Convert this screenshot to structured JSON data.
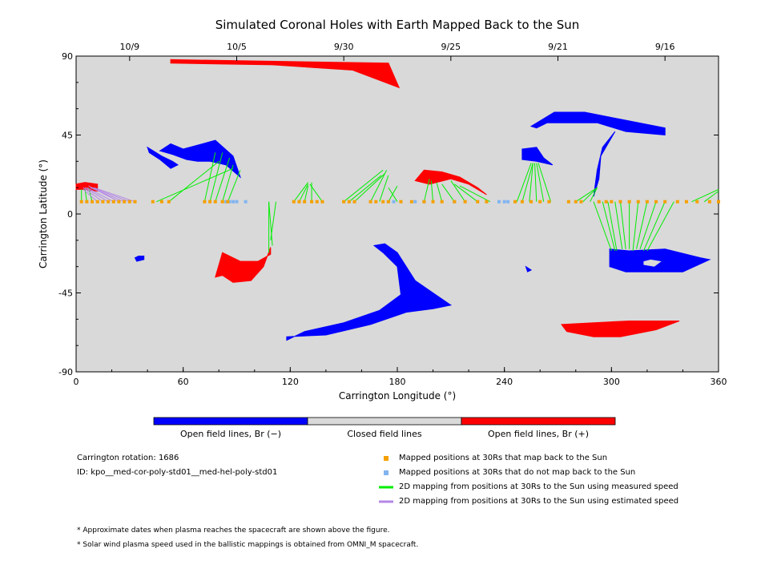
{
  "chart_data": {
    "type": "scatter",
    "title": "Simulated Coronal Holes with Earth Mapped Back to the Sun",
    "xlabel": "Carrington Longitude (°)",
    "ylabel": "Carrington Latitude (°)",
    "xlim": [
      0,
      360
    ],
    "ylim": [
      -90,
      90
    ],
    "x_ticks": [
      "0",
      "60",
      "120",
      "180",
      "240",
      "300",
      "360"
    ],
    "y_ticks": [
      "90",
      "45",
      "0",
      "-45",
      "-90"
    ],
    "top_axis_dates": [
      {
        "label": "10/9",
        "lon": 30
      },
      {
        "label": "10/5",
        "lon": 90
      },
      {
        "label": "9/30",
        "lon": 150
      },
      {
        "label": "9/25",
        "lon": 210
      },
      {
        "label": "9/21",
        "lon": 270
      },
      {
        "label": "9/16",
        "lon": 330
      }
    ],
    "grid": false,
    "colors": {
      "background": "#d9d9d9",
      "open_negative": "#0000ff",
      "open_positive": "#ff0000",
      "closed": "#d9d9d9",
      "mapped_point": "#f5a000",
      "unmapped_point": "#82b4f0",
      "measured_line": "#00ee00",
      "estimated_line": "#b487e6"
    },
    "colorbar": {
      "labels": [
        "Open field lines, Br (−)",
        "Closed field lines",
        "Open field lines, Br (+)"
      ]
    },
    "coronal_holes": [
      {
        "polarity": "positive",
        "points": [
          [
            53,
            88
          ],
          [
            175,
            86
          ],
          [
            181,
            72
          ],
          [
            155,
            82
          ],
          [
            110,
            85
          ],
          [
            53,
            86
          ]
        ]
      },
      {
        "polarity": "negative",
        "points": [
          [
            53,
            40
          ],
          [
            60,
            37
          ],
          [
            78,
            42
          ],
          [
            88,
            33
          ],
          [
            92,
            21
          ],
          [
            84,
            28
          ],
          [
            75,
            30
          ],
          [
            68,
            30
          ],
          [
            62,
            31
          ],
          [
            54,
            34
          ],
          [
            47,
            36
          ]
        ]
      },
      {
        "polarity": "negative",
        "points": [
          [
            40,
            38
          ],
          [
            48,
            33
          ],
          [
            54,
            30
          ],
          [
            57,
            28
          ],
          [
            53,
            26
          ],
          [
            47,
            31
          ],
          [
            41,
            35
          ]
        ]
      },
      {
        "polarity": "positive",
        "points": [
          [
            0,
            17
          ],
          [
            5,
            18
          ],
          [
            12,
            17
          ],
          [
            12,
            13
          ],
          [
            5,
            14
          ],
          [
            0,
            14
          ]
        ]
      },
      {
        "polarity": "positive",
        "points": [
          [
            195,
            25
          ],
          [
            205,
            24
          ],
          [
            215,
            21
          ],
          [
            225,
            15
          ],
          [
            230,
            11
          ],
          [
            220,
            17
          ],
          [
            210,
            20
          ],
          [
            198,
            17
          ],
          [
            190,
            19
          ]
        ]
      },
      {
        "polarity": "negative",
        "points": [
          [
            250,
            37
          ],
          [
            258,
            38
          ],
          [
            262,
            32
          ],
          [
            267,
            28
          ],
          [
            258,
            30
          ],
          [
            250,
            31
          ]
        ]
      },
      {
        "polarity": "negative",
        "points": [
          [
            255,
            50
          ],
          [
            268,
            58
          ],
          [
            285,
            58
          ],
          [
            305,
            54
          ],
          [
            330,
            49
          ],
          [
            330,
            45
          ],
          [
            308,
            47
          ],
          [
            292,
            52
          ],
          [
            275,
            52
          ],
          [
            264,
            52
          ],
          [
            258,
            49
          ]
        ]
      },
      {
        "polarity": "negative",
        "points": [
          [
            302,
            47
          ],
          [
            294,
            33
          ],
          [
            293,
            20
          ],
          [
            290,
            10
          ],
          [
            292,
            25
          ],
          [
            295,
            38
          ]
        ]
      },
      {
        "polarity": "negative",
        "points": [
          [
            299,
            -20
          ],
          [
            310,
            -21
          ],
          [
            330,
            -20
          ],
          [
            350,
            -25
          ],
          [
            355,
            -26
          ],
          [
            340,
            -33
          ],
          [
            322,
            -33
          ],
          [
            308,
            -33
          ],
          [
            299,
            -30
          ]
        ]
      },
      {
        "polarity": "positive",
        "points": [
          [
            82,
            -22
          ],
          [
            92,
            -27
          ],
          [
            102,
            -27
          ],
          [
            109,
            -23
          ],
          [
            109,
            -19
          ],
          [
            105,
            -30
          ],
          [
            98,
            -38
          ],
          [
            88,
            -39
          ],
          [
            82,
            -35
          ],
          [
            78,
            -36
          ]
        ]
      },
      {
        "polarity": "negative",
        "points": [
          [
            118,
            -70
          ],
          [
            140,
            -69
          ],
          [
            165,
            -63
          ],
          [
            185,
            -56
          ],
          [
            200,
            -54
          ],
          [
            210,
            -52
          ],
          [
            200,
            -45
          ],
          [
            190,
            -38
          ],
          [
            180,
            -22
          ],
          [
            173,
            -17
          ],
          [
            167,
            -18
          ],
          [
            172,
            -22
          ],
          [
            180,
            -30
          ],
          [
            182,
            -46
          ],
          [
            170,
            -55
          ],
          [
            150,
            -62
          ],
          [
            128,
            -67
          ],
          [
            118,
            -72
          ]
        ]
      },
      {
        "polarity": "positive",
        "points": [
          [
            272,
            -63
          ],
          [
            290,
            -62
          ],
          [
            310,
            -61
          ],
          [
            338,
            -61
          ],
          [
            325,
            -66
          ],
          [
            305,
            -70
          ],
          [
            290,
            -70
          ],
          [
            275,
            -67
          ]
        ]
      },
      {
        "polarity": "negative",
        "points": [
          [
            33,
            -25
          ],
          [
            35,
            -24
          ],
          [
            38,
            -24
          ],
          [
            38,
            -26
          ],
          [
            34,
            -27
          ]
        ]
      },
      {
        "polarity": "negative",
        "points": [
          [
            252,
            -30
          ],
          [
            255,
            -32
          ],
          [
            253,
            -33
          ]
        ]
      }
    ],
    "closed_island": {
      "polarity": "closed",
      "points": [
        [
          318,
          -27
        ],
        [
          322,
          -26
        ],
        [
          328,
          -27
        ],
        [
          324,
          -30
        ],
        [
          318,
          -29
        ]
      ]
    },
    "mapped_points": [
      3,
      6,
      9,
      12,
      15,
      18,
      21,
      24,
      27,
      30,
      33,
      43,
      48,
      52,
      72,
      75,
      78,
      82,
      85,
      122,
      125,
      128,
      132,
      135,
      138,
      150,
      153,
      156,
      165,
      168,
      172,
      175,
      182,
      188,
      195,
      200,
      205,
      212,
      218,
      225,
      230,
      246,
      250,
      255,
      260,
      265,
      276,
      280,
      283,
      293,
      297,
      300,
      305,
      310,
      315,
      320,
      325,
      330,
      337,
      342,
      348,
      355,
      360
    ],
    "unmapped_points": [
      84,
      86,
      88,
      90,
      95,
      175,
      178,
      190,
      195,
      212,
      237,
      240,
      242
    ],
    "mapped_latitude": 7,
    "measured_mappings": [
      [
        [
          72,
          7
        ],
        [
          78,
          35
        ]
      ],
      [
        [
          75,
          7
        ],
        [
          82,
          35
        ]
      ],
      [
        [
          78,
          7
        ],
        [
          86,
          32
        ]
      ],
      [
        [
          82,
          7
        ],
        [
          88,
          28
        ]
      ],
      [
        [
          85,
          7
        ],
        [
          92,
          25
        ]
      ],
      [
        [
          45,
          7
        ],
        [
          88,
          26
        ]
      ],
      [
        [
          52,
          7
        ],
        [
          80,
          30
        ]
      ],
      [
        [
          122,
          7
        ],
        [
          130,
          18
        ]
      ],
      [
        [
          125,
          7
        ],
        [
          130,
          17
        ]
      ],
      [
        [
          128,
          7
        ],
        [
          130,
          16
        ]
      ],
      [
        [
          132,
          7
        ],
        [
          132,
          18
        ]
      ],
      [
        [
          138,
          7
        ],
        [
          131,
          17
        ]
      ],
      [
        [
          150,
          7
        ],
        [
          172,
          25
        ]
      ],
      [
        [
          153,
          7
        ],
        [
          171,
          22
        ]
      ],
      [
        [
          156,
          7
        ],
        [
          173,
          23
        ]
      ],
      [
        [
          165,
          7
        ],
        [
          174,
          25
        ]
      ],
      [
        [
          170,
          7
        ],
        [
          175,
          22
        ]
      ],
      [
        [
          175,
          7
        ],
        [
          180,
          16
        ]
      ],
      [
        [
          180,
          7
        ],
        [
          175,
          15
        ]
      ],
      [
        [
          195,
          7
        ],
        [
          198,
          20
        ]
      ],
      [
        [
          200,
          7
        ],
        [
          199,
          19
        ]
      ],
      [
        [
          205,
          7
        ],
        [
          202,
          18
        ]
      ],
      [
        [
          212,
          7
        ],
        [
          205,
          17
        ]
      ],
      [
        [
          218,
          7
        ],
        [
          210,
          19
        ]
      ],
      [
        [
          225,
          7
        ],
        [
          212,
          17
        ]
      ],
      [
        [
          232,
          7
        ],
        [
          215,
          16
        ]
      ],
      [
        [
          247,
          7
        ],
        [
          255,
          29
        ]
      ],
      [
        [
          250,
          7
        ],
        [
          256,
          29
        ]
      ],
      [
        [
          254,
          7
        ],
        [
          256,
          29
        ]
      ],
      [
        [
          258,
          7
        ],
        [
          257,
          29
        ]
      ],
      [
        [
          262,
          7
        ],
        [
          258,
          29
        ]
      ],
      [
        [
          266,
          7
        ],
        [
          259,
          29
        ]
      ],
      [
        [
          280,
          7
        ],
        [
          292,
          15
        ]
      ],
      [
        [
          284,
          7
        ],
        [
          291,
          14
        ]
      ],
      [
        [
          288,
          7
        ],
        [
          292,
          15
        ]
      ],
      [
        [
          345,
          7
        ],
        [
          360,
          14
        ]
      ],
      [
        [
          352,
          7
        ],
        [
          360,
          13
        ]
      ],
      [
        [
          108,
          7
        ],
        [
          108,
          -22
        ]
      ],
      [
        [
          108,
          7
        ],
        [
          110,
          -18
        ]
      ],
      [
        [
          112,
          7
        ],
        [
          109,
          -15
        ]
      ],
      [
        [
          290,
          7
        ],
        [
          300,
          -21
        ]
      ],
      [
        [
          295,
          7
        ],
        [
          302,
          -21
        ]
      ],
      [
        [
          298,
          7
        ],
        [
          303,
          -21
        ]
      ],
      [
        [
          302,
          7
        ],
        [
          306,
          -20
        ]
      ],
      [
        [
          305,
          7
        ],
        [
          308,
          -20
        ]
      ],
      [
        [
          310,
          7
        ],
        [
          310,
          -20
        ]
      ],
      [
        [
          315,
          7
        ],
        [
          312,
          -21
        ]
      ],
      [
        [
          320,
          7
        ],
        [
          314,
          -20
        ]
      ],
      [
        [
          325,
          7
        ],
        [
          316,
          -20
        ]
      ],
      [
        [
          330,
          7
        ],
        [
          318,
          -21
        ]
      ],
      [
        [
          335,
          7
        ],
        [
          320,
          -21
        ]
      ],
      [
        [
          3,
          7
        ],
        [
          3,
          14
        ]
      ],
      [
        [
          6,
          7
        ],
        [
          5,
          14
        ]
      ],
      [
        [
          9,
          7
        ],
        [
          7,
          15
        ]
      ]
    ],
    "estimated_mappings": [
      [
        [
          12,
          7
        ],
        [
          4,
          14
        ]
      ],
      [
        [
          15,
          7
        ],
        [
          4,
          15
        ]
      ],
      [
        [
          18,
          7
        ],
        [
          5,
          15
        ]
      ],
      [
        [
          21,
          7
        ],
        [
          6,
          15
        ]
      ],
      [
        [
          24,
          7
        ],
        [
          7,
          16
        ]
      ],
      [
        [
          27,
          7
        ],
        [
          8,
          15
        ]
      ],
      [
        [
          30,
          7
        ],
        [
          9,
          15
        ]
      ],
      [
        [
          33,
          7
        ],
        [
          10,
          15
        ]
      ]
    ]
  },
  "legend": {
    "rotation": "Carrington rotation: 1686",
    "id": "ID: kpo__med-cor-poly-std01__med-hel-poly-std01",
    "mapped": "Mapped positions at 30Rs that map back to the Sun",
    "unmapped": "Mapped positions at 30Rs that do not map back to the Sun",
    "measured": "2D mapping from positions at 30Rs to the Sun using measured speed",
    "estimated": "2D mapping from positions at 30Rs to the Sun using estimated speed"
  },
  "notes": {
    "note1": "* Approximate dates when plasma reaches the spacecraft are shown above the figure.",
    "note2": "* Solar wind plasma speed used in the ballistic mappings is obtained from OMNI_M spacecraft."
  }
}
